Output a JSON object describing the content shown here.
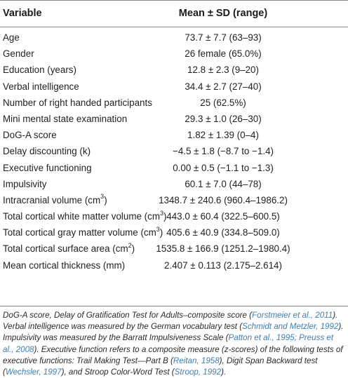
{
  "table": {
    "header": {
      "variable": "Variable",
      "mean": "Mean ± SD (range)"
    },
    "rows": [
      {
        "label": "Age",
        "value": "73.7 ± 7.7 (63–93)"
      },
      {
        "label": "Gender",
        "value": "26 female (65.0%)"
      },
      {
        "label": "Education (years)",
        "value": "12.8 ± 2.3 (9–20)"
      },
      {
        "label": "Verbal intelligence",
        "value": "34.4 ± 2.7 (27–40)"
      },
      {
        "label": "Number of right handed participants",
        "value": "25 (62.5%)"
      },
      {
        "label": "Mini mental state examination",
        "value": "29.3 ± 1.0 (26–30)"
      },
      {
        "label": "DoG-A score",
        "value": "1.82 ± 1.39 (0–4)"
      },
      {
        "label": "Delay discounting (k)",
        "value": "−4.5 ± 1.8 (−8.7 to −1.4)"
      },
      {
        "label": "Executive functioning",
        "value": "0.00 ± 0.5 (−1.1 to −1.3)"
      },
      {
        "label": "Impulsivity",
        "value": "60.1 ± 7.0 (44–78)"
      },
      {
        "label": "Intracranial volume (cm",
        "label_sup": "3",
        "label_after": ")",
        "value": "1348.7 ± 240.6 (960.4–1986.2)"
      },
      {
        "label": "Total cortical white matter volume (cm",
        "label_sup": "3",
        "label_after": ")",
        "value": "443.0 ± 60.4 (322.5–600.5)"
      },
      {
        "label": "Total cortical gray matter volume (cm",
        "label_sup": "3",
        "label_after": ")",
        "value": "405.6 ± 40.9 (334.8–509.0)"
      },
      {
        "label": "Total cortical surface area (cm",
        "label_sup": "2",
        "label_after": ")",
        "value": "1535.8 ± 166.9 (1251.2–1980.4)"
      },
      {
        "label": "Mean cortical thickness (mm)",
        "value": "2.407 ± 0.113 (2.175–2.614)"
      }
    ]
  },
  "footnote": {
    "parts": [
      {
        "t": "DoG-A score, Delay of Gratification Test for Adults–composite score ("
      },
      {
        "t": "Forstmeier et al., 2011",
        "cite": true
      },
      {
        "t": "). Verbal intelligence was measured by the German vocabulary test ("
      },
      {
        "t": "Schmidt and Metzler, 1992",
        "cite": true
      },
      {
        "t": "). Impulsivity was measured by the Barratt Impulsiveness Scale ("
      },
      {
        "t": "Patton et al., 1995; Preuss et al., 2008",
        "cite": true
      },
      {
        "t": "). Executive function refers to a composite measure (z-scores) of the following tests of executive functions: Trail Making Test—Part B ("
      },
      {
        "t": "Reitan, 1958",
        "cite": true
      },
      {
        "t": "), Digit Span Backward test ("
      },
      {
        "t": "Wechsler, 1997",
        "cite": true
      },
      {
        "t": "), and Stroop Color-Word Test ("
      },
      {
        "t": "Stroop, 1992",
        "cite": true
      },
      {
        "t": ")."
      }
    ]
  },
  "colors": {
    "rule": "#888888",
    "citation": "#3d7fb5",
    "text": "#222222"
  }
}
